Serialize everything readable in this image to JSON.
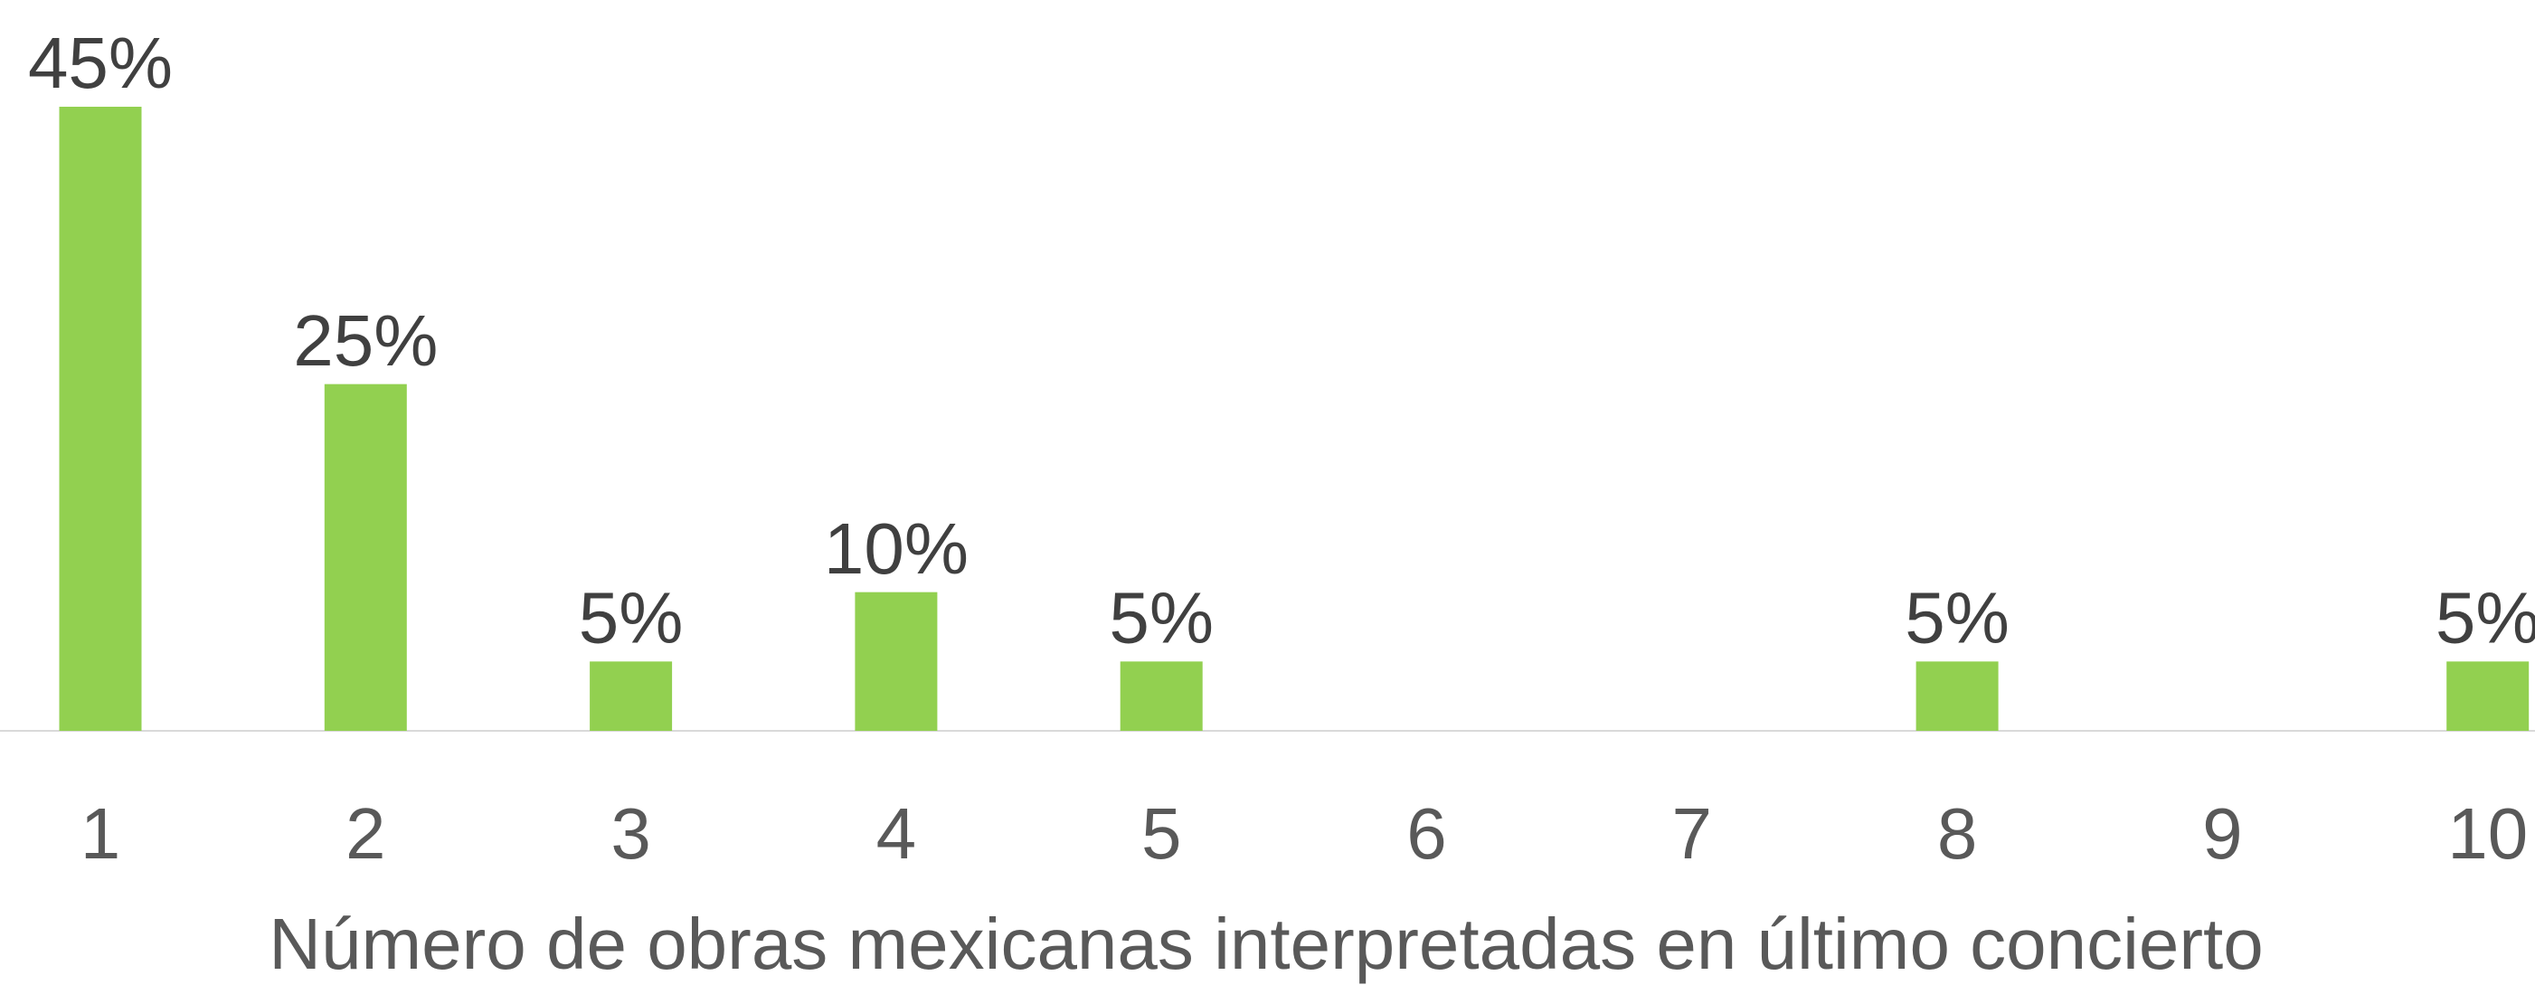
{
  "chart_data": {
    "type": "bar",
    "x_label": "Número de obras mexicanas interpretadas en último concierto",
    "categories": [
      "1",
      "2",
      "3",
      "4",
      "5",
      "6",
      "7",
      "8",
      "9",
      "10"
    ],
    "values": [
      45,
      25,
      5,
      10,
      5,
      null,
      null,
      5,
      null,
      5
    ],
    "value_labels": [
      "45%",
      "25%",
      "5%",
      "10%",
      "5%",
      null,
      null,
      "5%",
      null,
      "5%"
    ],
    "color": "#92d050"
  }
}
